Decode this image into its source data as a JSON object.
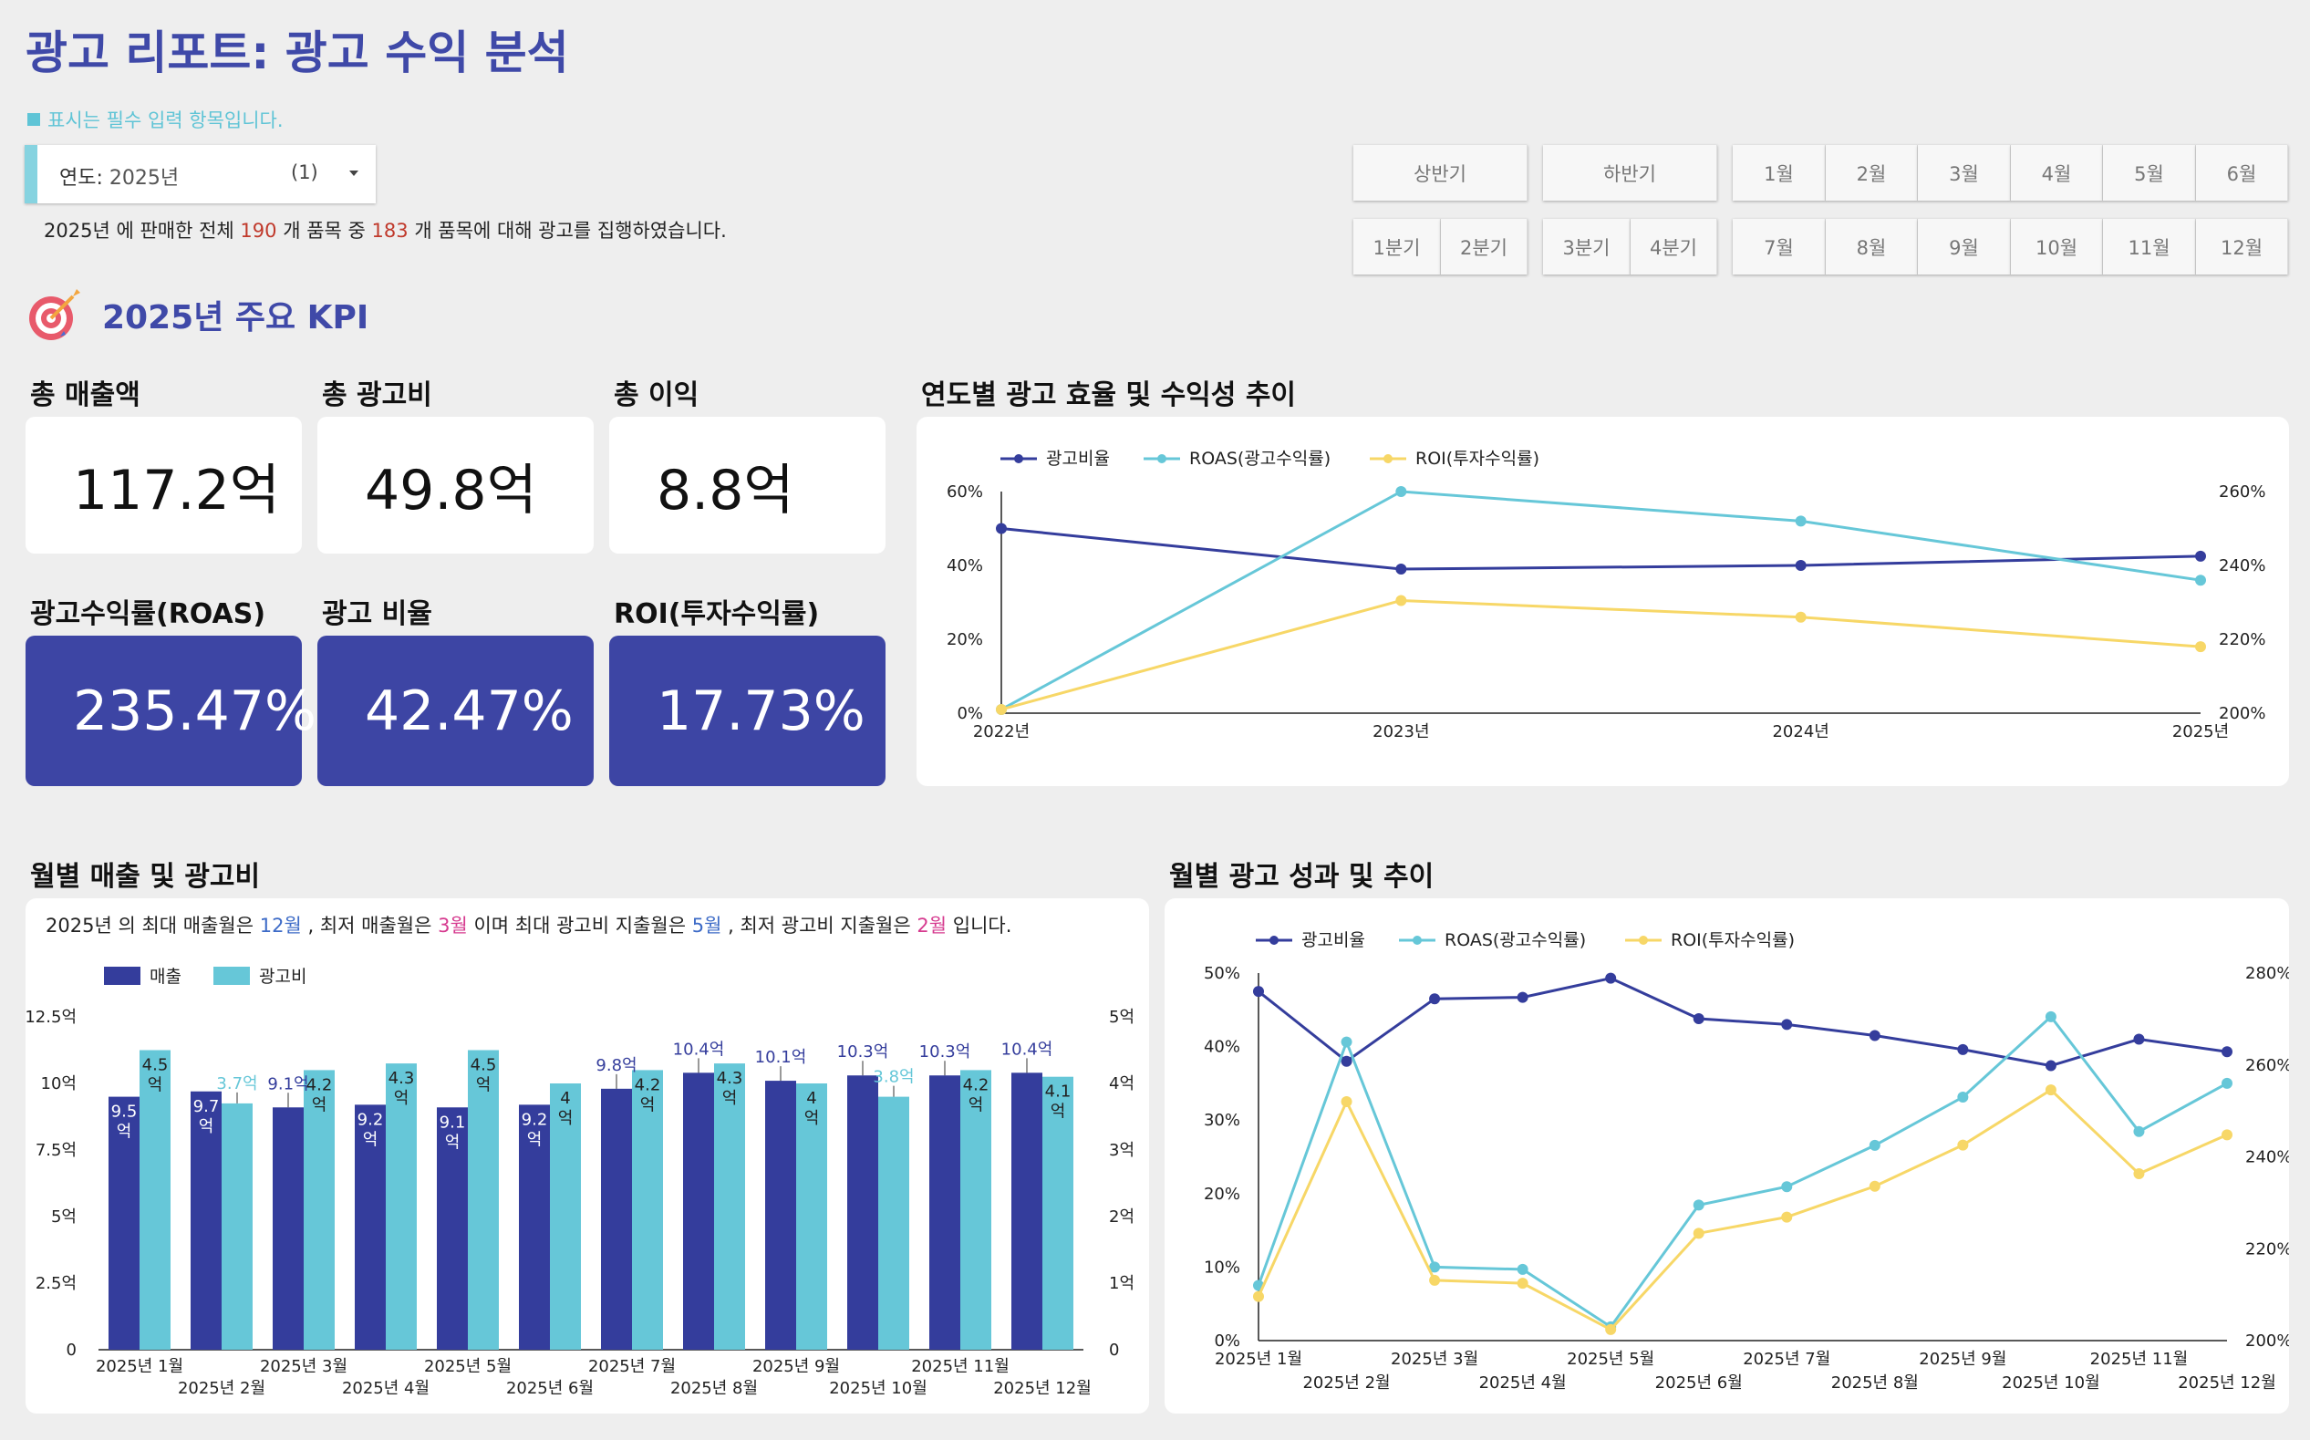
{
  "page": {
    "title": "광고 리포트: 광고 수익 분석",
    "required_note": "표시는 필수 입력 항목입니다."
  },
  "filter": {
    "label": "연도:",
    "value": "2025년",
    "count": "(1)"
  },
  "summary": {
    "year": "2025년",
    "t1": "에 판매한 전체",
    "total": "190",
    "t2": "개 품목 중",
    "advertised": "183",
    "t3": "개 품목에 대해 광고를 집행하였습니다."
  },
  "period_buttons": {
    "half": [
      "상반기",
      "하반기"
    ],
    "quarters": [
      "1분기",
      "2분기",
      "3분기",
      "4분기"
    ],
    "months_row1": [
      "1월",
      "2월",
      "3월",
      "4월",
      "5월",
      "6월"
    ],
    "months_row2": [
      "7월",
      "8월",
      "9월",
      "10월",
      "11월",
      "12월"
    ]
  },
  "kpi": {
    "heading": "2025년 주요 KPI",
    "items": [
      {
        "label": "총 매출액",
        "value": "117.2억"
      },
      {
        "label": "총 광고비",
        "value": "49.8억"
      },
      {
        "label": "총 이익",
        "value": "8.8억"
      },
      {
        "label": "광고수익률(ROAS)",
        "value": "235.47%"
      },
      {
        "label": "광고 비율",
        "value": "42.47%"
      },
      {
        "label": "ROI(투자수익률)",
        "value": "17.73%"
      }
    ]
  },
  "colors": {
    "navy": "#343d9c",
    "teal": "#66c7d8",
    "yellow": "#f7d767",
    "kpi_dark": "#3d45a4",
    "title": "#3f49a8"
  },
  "monthly_note": {
    "year": "2025년",
    "t1": "의 최대 매출월은",
    "max_sales": "12월",
    "t2": ", 최저 매출월은",
    "min_sales": "3월",
    "t3": "이며 최대 광고비 지출월은",
    "max_ad": "5월",
    "t4": ", 최저 광고비 지출월은",
    "min_ad": "2월",
    "t5": "입니다."
  },
  "chart_data": [
    {
      "id": "yearly",
      "type": "line",
      "title": "연도별 광고 효율 및 수익성 추이",
      "x": [
        "2022년",
        "2023년",
        "2024년",
        "2025년"
      ],
      "left_ticks": [
        "0%",
        "20%",
        "40%",
        "60%"
      ],
      "right_ticks": [
        "200%",
        "220%",
        "240%",
        "260%"
      ],
      "ylim_left": [
        0,
        60
      ],
      "ylim_right": [
        200,
        260
      ],
      "legend_position": "top-left",
      "series": [
        {
          "name": "광고비율",
          "axis": "left",
          "values": [
            50,
            39,
            40,
            42.5
          ]
        },
        {
          "name": "ROAS(광고수익률)",
          "axis": "right",
          "values": [
            201,
            260,
            252,
            236
          ]
        },
        {
          "name": "ROI(투자수익률)",
          "axis": "left",
          "values": [
            1,
            30.5,
            26,
            18
          ]
        }
      ]
    },
    {
      "id": "monthly_bar",
      "type": "bar",
      "title": "월별 매출 및 광고비",
      "categories": [
        "2025년 1월",
        "2025년 2월",
        "2025년 3월",
        "2025년 4월",
        "2025년 5월",
        "2025년 6월",
        "2025년 7월",
        "2025년 8월",
        "2025년 9월",
        "2025년 10월",
        "2025년 11월",
        "2025년 12월"
      ],
      "left_ticks": [
        "0",
        "2.5억",
        "5억",
        "7.5억",
        "10억",
        "12.5억"
      ],
      "right_ticks": [
        "0",
        "1억",
        "2억",
        "3억",
        "4억",
        "5억"
      ],
      "ylim_left": [
        0,
        12.5
      ],
      "ylim_right": [
        0,
        5
      ],
      "legend_position": "top-left",
      "series": [
        {
          "name": "매출",
          "axis": "left",
          "values": [
            9.5,
            9.7,
            9.1,
            9.2,
            9.1,
            9.2,
            9.8,
            10.4,
            10.1,
            10.3,
            10.3,
            10.4
          ]
        },
        {
          "name": "광고비",
          "axis": "right",
          "values": [
            4.5,
            3.7,
            4.2,
            4.3,
            4.5,
            4.0,
            4.2,
            4.3,
            4.0,
            3.8,
            4.2,
            4.1
          ]
        }
      ]
    },
    {
      "id": "monthly_line",
      "type": "line",
      "title": "월별 광고 성과 및 추이",
      "x": [
        "2025년 1월",
        "2025년 2월",
        "2025년 3월",
        "2025년 4월",
        "2025년 5월",
        "2025년 6월",
        "2025년 7월",
        "2025년 8월",
        "2025년 9월",
        "2025년 10월",
        "2025년 11월",
        "2025년 12월"
      ],
      "left_ticks": [
        "0%",
        "10%",
        "20%",
        "30%",
        "40%",
        "50%"
      ],
      "right_ticks": [
        "200%",
        "220%",
        "240%",
        "260%",
        "280%"
      ],
      "ylim_left": [
        0,
        50
      ],
      "ylim_right": [
        200,
        280
      ],
      "legend_position": "top-left",
      "series": [
        {
          "name": "광고비율",
          "axis": "left",
          "values": [
            47.5,
            38,
            46.5,
            46.7,
            49.3,
            43.8,
            43,
            41.5,
            39.6,
            37.4,
            41,
            39.3
          ]
        },
        {
          "name": "ROAS(광고수익률)",
          "axis": "right",
          "values": [
            212,
            265,
            216,
            215.5,
            203,
            229.5,
            233.5,
            242.5,
            253,
            270.5,
            245.5,
            256
          ]
        },
        {
          "name": "ROI(투자수익률)",
          "axis": "left",
          "values": [
            6,
            32.5,
            8.2,
            7.8,
            1.5,
            14.6,
            16.8,
            21,
            26.6,
            34.1,
            22.7,
            28
          ]
        }
      ]
    }
  ]
}
